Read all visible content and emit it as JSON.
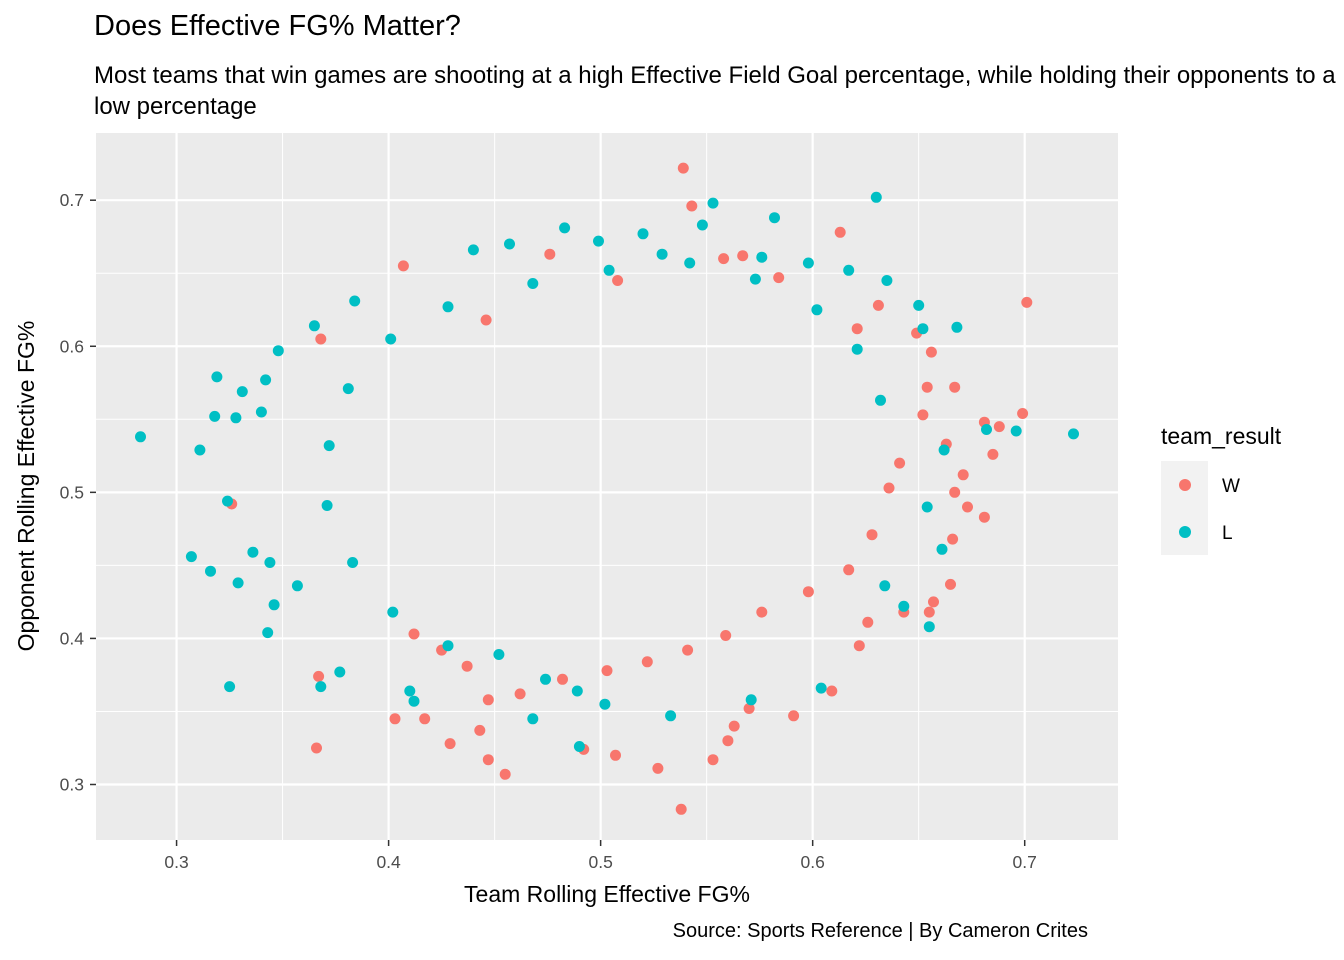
{
  "chart_data": {
    "type": "scatter",
    "title": "Does Effective FG% Matter?",
    "subtitle": "Most teams that win games are shooting at a high Effective Field Goal percentage, while holding their opponents to a low percentage",
    "caption": "Source: Sports Reference | By Cameron Crites",
    "xlabel": "Team Rolling Effective FG%",
    "ylabel": "Opponent Rolling Effective FG%",
    "xlim": [
      0.262,
      0.744
    ],
    "ylim": [
      0.262,
      0.746
    ],
    "x_ticks": [
      0.3,
      0.4,
      0.5,
      0.6,
      0.7
    ],
    "y_ticks": [
      0.3,
      0.4,
      0.5,
      0.6,
      0.7
    ],
    "x_tick_labels": [
      "0.3",
      "0.4",
      "0.5",
      "0.6",
      "0.7"
    ],
    "y_tick_labels": [
      "0.3",
      "0.4",
      "0.5",
      "0.6",
      "0.7"
    ],
    "grid": true,
    "legend": {
      "title": "team_result",
      "placement": "right",
      "entries": [
        "W",
        "L"
      ]
    },
    "colors": {
      "W": "#F8766D",
      "L": "#00BFC4",
      "panel": "#EBEBEB",
      "grid": "#FFFFFF"
    },
    "series": [
      {
        "name": "W",
        "points": [
          [
            0.539,
            0.722
          ],
          [
            0.543,
            0.696
          ],
          [
            0.613,
            0.678
          ],
          [
            0.701,
            0.63
          ],
          [
            0.699,
            0.554
          ],
          [
            0.688,
            0.545
          ],
          [
            0.681,
            0.548
          ],
          [
            0.685,
            0.526
          ],
          [
            0.667,
            0.572
          ],
          [
            0.663,
            0.533
          ],
          [
            0.671,
            0.512
          ],
          [
            0.667,
            0.5
          ],
          [
            0.673,
            0.49
          ],
          [
            0.681,
            0.483
          ],
          [
            0.666,
            0.468
          ],
          [
            0.665,
            0.437
          ],
          [
            0.657,
            0.425
          ],
          [
            0.655,
            0.418
          ],
          [
            0.643,
            0.418
          ],
          [
            0.626,
            0.411
          ],
          [
            0.622,
            0.395
          ],
          [
            0.609,
            0.364
          ],
          [
            0.591,
            0.347
          ],
          [
            0.57,
            0.352
          ],
          [
            0.563,
            0.34
          ],
          [
            0.56,
            0.33
          ],
          [
            0.553,
            0.317
          ],
          [
            0.538,
            0.283
          ],
          [
            0.527,
            0.311
          ],
          [
            0.507,
            0.32
          ],
          [
            0.492,
            0.324
          ],
          [
            0.455,
            0.307
          ],
          [
            0.447,
            0.317
          ],
          [
            0.443,
            0.337
          ],
          [
            0.429,
            0.328
          ],
          [
            0.417,
            0.345
          ],
          [
            0.403,
            0.345
          ],
          [
            0.366,
            0.325
          ],
          [
            0.367,
            0.374
          ],
          [
            0.326,
            0.492
          ],
          [
            0.368,
            0.605
          ],
          [
            0.407,
            0.655
          ],
          [
            0.446,
            0.618
          ],
          [
            0.476,
            0.663
          ],
          [
            0.508,
            0.645
          ],
          [
            0.558,
            0.66
          ],
          [
            0.567,
            0.662
          ],
          [
            0.584,
            0.647
          ],
          [
            0.621,
            0.612
          ],
          [
            0.631,
            0.628
          ],
          [
            0.649,
            0.609
          ],
          [
            0.656,
            0.596
          ],
          [
            0.654,
            0.572
          ],
          [
            0.652,
            0.553
          ],
          [
            0.641,
            0.52
          ],
          [
            0.636,
            0.503
          ],
          [
            0.628,
            0.471
          ],
          [
            0.617,
            0.447
          ],
          [
            0.598,
            0.432
          ],
          [
            0.576,
            0.418
          ],
          [
            0.559,
            0.402
          ],
          [
            0.541,
            0.392
          ],
          [
            0.522,
            0.384
          ],
          [
            0.503,
            0.378
          ],
          [
            0.482,
            0.372
          ],
          [
            0.462,
            0.362
          ],
          [
            0.447,
            0.358
          ],
          [
            0.437,
            0.381
          ],
          [
            0.425,
            0.392
          ],
          [
            0.412,
            0.403
          ]
        ]
      },
      {
        "name": "L",
        "points": [
          [
            0.283,
            0.538
          ],
          [
            0.307,
            0.456
          ],
          [
            0.311,
            0.529
          ],
          [
            0.316,
            0.446
          ],
          [
            0.318,
            0.552
          ],
          [
            0.319,
            0.579
          ],
          [
            0.325,
            0.367
          ],
          [
            0.324,
            0.494
          ],
          [
            0.328,
            0.551
          ],
          [
            0.329,
            0.438
          ],
          [
            0.331,
            0.569
          ],
          [
            0.336,
            0.459
          ],
          [
            0.34,
            0.555
          ],
          [
            0.342,
            0.577
          ],
          [
            0.343,
            0.404
          ],
          [
            0.344,
            0.452
          ],
          [
            0.346,
            0.423
          ],
          [
            0.348,
            0.597
          ],
          [
            0.357,
            0.436
          ],
          [
            0.365,
            0.614
          ],
          [
            0.368,
            0.367
          ],
          [
            0.377,
            0.377
          ],
          [
            0.384,
            0.631
          ],
          [
            0.41,
            0.364
          ],
          [
            0.412,
            0.357
          ],
          [
            0.44,
            0.666
          ],
          [
            0.457,
            0.67
          ],
          [
            0.468,
            0.345
          ],
          [
            0.483,
            0.681
          ],
          [
            0.489,
            0.364
          ],
          [
            0.49,
            0.326
          ],
          [
            0.499,
            0.672
          ],
          [
            0.52,
            0.677
          ],
          [
            0.529,
            0.663
          ],
          [
            0.548,
            0.683
          ],
          [
            0.553,
            0.698
          ],
          [
            0.576,
            0.661
          ],
          [
            0.582,
            0.688
          ],
          [
            0.598,
            0.657
          ],
          [
            0.617,
            0.652
          ],
          [
            0.63,
            0.702
          ],
          [
            0.635,
            0.645
          ],
          [
            0.65,
            0.628
          ],
          [
            0.652,
            0.612
          ],
          [
            0.668,
            0.613
          ],
          [
            0.682,
            0.543
          ],
          [
            0.696,
            0.542
          ],
          [
            0.723,
            0.54
          ],
          [
            0.662,
            0.529
          ],
          [
            0.654,
            0.49
          ],
          [
            0.655,
            0.408
          ],
          [
            0.643,
            0.422
          ],
          [
            0.661,
            0.461
          ],
          [
            0.634,
            0.436
          ],
          [
            0.604,
            0.366
          ],
          [
            0.571,
            0.358
          ],
          [
            0.533,
            0.347
          ],
          [
            0.502,
            0.355
          ],
          [
            0.474,
            0.372
          ],
          [
            0.452,
            0.389
          ],
          [
            0.428,
            0.395
          ],
          [
            0.402,
            0.418
          ],
          [
            0.383,
            0.452
          ],
          [
            0.371,
            0.491
          ],
          [
            0.372,
            0.532
          ],
          [
            0.381,
            0.571
          ],
          [
            0.401,
            0.605
          ],
          [
            0.428,
            0.627
          ],
          [
            0.468,
            0.643
          ],
          [
            0.504,
            0.652
          ],
          [
            0.542,
            0.657
          ],
          [
            0.573,
            0.646
          ],
          [
            0.602,
            0.625
          ],
          [
            0.621,
            0.598
          ],
          [
            0.632,
            0.563
          ]
        ]
      }
    ]
  }
}
